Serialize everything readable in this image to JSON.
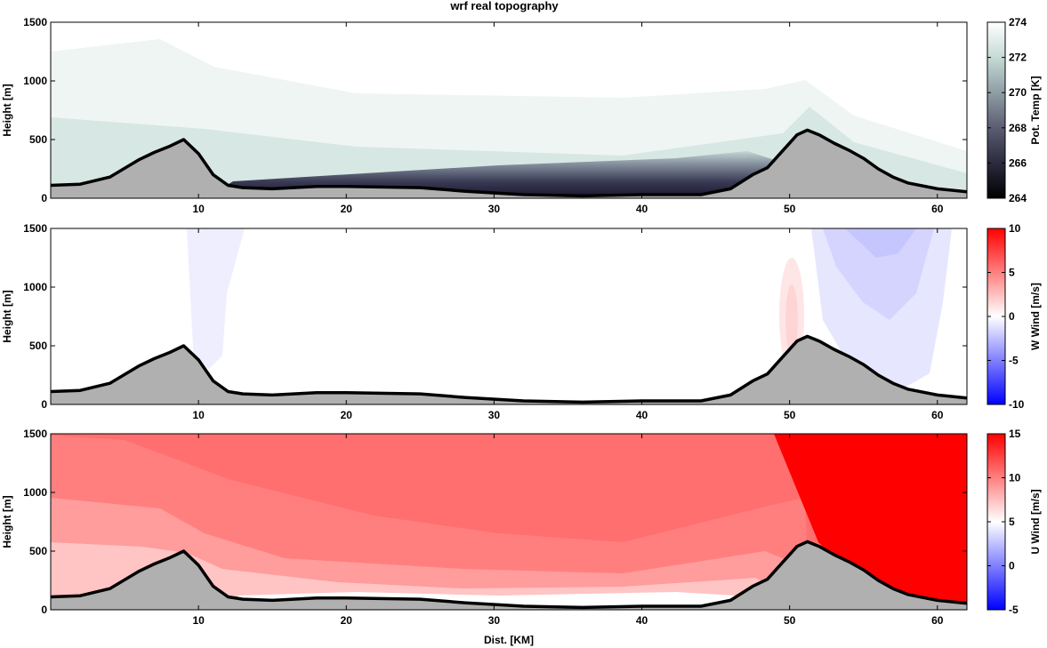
{
  "title": "wrf real topography",
  "xlabel": "Dist. [KM]",
  "chart_data": [
    {
      "type": "heatmap",
      "name": "potential-temperature",
      "ylabel": "Height [m]",
      "colorbar_label": "Pot. Temp [K]",
      "colorbar_ticks": [
        264,
        266,
        268,
        270,
        272,
        274
      ],
      "clim": [
        264,
        274
      ],
      "xlim": [
        0,
        62
      ],
      "ylim": [
        0,
        1500
      ],
      "xticks": [
        10,
        20,
        30,
        40,
        50,
        60
      ],
      "yticks": [
        0,
        500,
        1000,
        1500
      ],
      "colormap": [
        "#000000",
        "#2b2b3e",
        "#5c5c73",
        "#8e9ea4",
        "#c5dad6",
        "#ffffff"
      ]
    },
    {
      "type": "heatmap",
      "name": "w-wind",
      "ylabel": "Height [m]",
      "colorbar_label": "W Wind [m/s]",
      "colorbar_ticks": [
        -10,
        -5,
        0,
        5,
        10
      ],
      "clim": [
        -10,
        10
      ],
      "xlim": [
        0,
        62
      ],
      "ylim": [
        0,
        1500
      ],
      "xticks": [
        10,
        20,
        30,
        40,
        50,
        60
      ],
      "yticks": [
        0,
        500,
        1000,
        1500
      ],
      "colormap": [
        "#0000ff",
        "#ffffff",
        "#ff0000"
      ]
    },
    {
      "type": "heatmap",
      "name": "u-wind",
      "ylabel": "Height [m]",
      "colorbar_label": "U Wind [m/s]",
      "colorbar_ticks": [
        -5,
        0,
        5,
        10,
        15
      ],
      "clim": [
        -5,
        15
      ],
      "xlim": [
        0,
        62
      ],
      "ylim": [
        0,
        1500
      ],
      "xticks": [
        10,
        20,
        30,
        40,
        50,
        60
      ],
      "yticks": [
        0,
        500,
        1000,
        1500
      ],
      "colormap": [
        "#0000ff",
        "#ffffff",
        "#ff0000"
      ]
    }
  ],
  "terrain": {
    "x": [
      0,
      2,
      4,
      6,
      7,
      8,
      9,
      10,
      11,
      12,
      13,
      15,
      18,
      20,
      25,
      28,
      32,
      36,
      40,
      44,
      46,
      47.5,
      48.5,
      49.5,
      50.5,
      51.2,
      52,
      53,
      54,
      55,
      56,
      57,
      58,
      60,
      62
    ],
    "y": [
      110,
      120,
      180,
      330,
      390,
      440,
      500,
      380,
      200,
      110,
      90,
      80,
      100,
      100,
      90,
      60,
      30,
      20,
      30,
      30,
      80,
      200,
      260,
      400,
      540,
      580,
      540,
      470,
      410,
      340,
      250,
      180,
      130,
      80,
      55
    ],
    "color": "#b0b0b0"
  }
}
